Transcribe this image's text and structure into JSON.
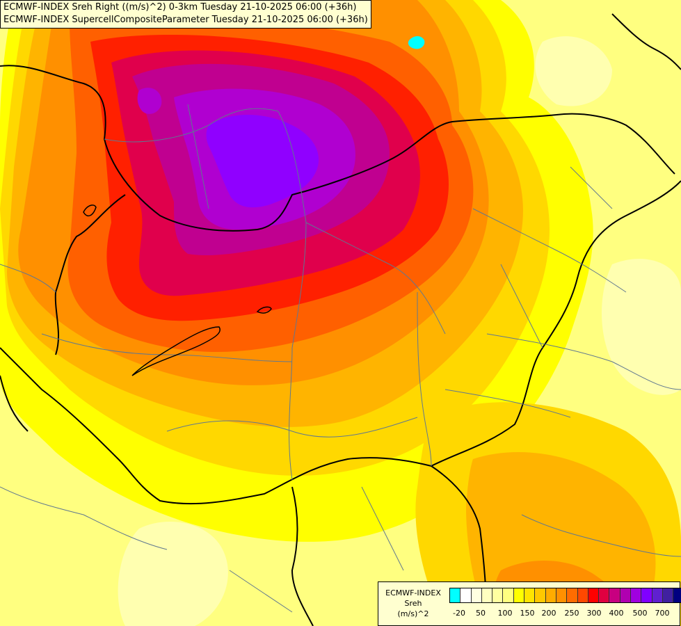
{
  "header": {
    "line1": "ECMWF-INDEX Sreh Right ((m/s)^2) 0-3km Tuesday 21-10-2025 06:00 (+36h)",
    "line2": "ECMWF-INDEX SupercellCompositeParameter Tuesday 21-10-2025 06:00 (+36h)"
  },
  "legend": {
    "line1": "ECMWF-INDEX",
    "line2": "Sreh",
    "line3": "(m/s)^2",
    "colors": [
      "#00ffff",
      "#ffffff",
      "#ffffe0",
      "#ffffc0",
      "#ffffa0",
      "#ffff80",
      "#ffff00",
      "#ffe400",
      "#ffc800",
      "#ffac00",
      "#ff9000",
      "#ff6c00",
      "#ff4800",
      "#ff0000",
      "#e00040",
      "#c80080",
      "#b000b0",
      "#a000e0",
      "#8000ff",
      "#6020d0",
      "#4020a0",
      "#000080"
    ],
    "ticks": [
      "-20",
      "50",
      "100",
      "150",
      "200",
      "250",
      "300",
      "400",
      "500",
      "700"
    ]
  },
  "map_colors": {
    "base": "#ffff80",
    "light": "#ffffb0",
    "yellow": "#ffff00",
    "gold": "#ffd800",
    "amber": "#ffb400",
    "orange": "#ff9000",
    "dark_orange": "#ff6000",
    "red": "#ff2000",
    "crimson": "#e0004c",
    "magenta": "#c00090",
    "purple": "#b000d0",
    "violet": "#9000ff",
    "cyan": "#00ffff",
    "border": "#000000",
    "region": "#607890"
  }
}
